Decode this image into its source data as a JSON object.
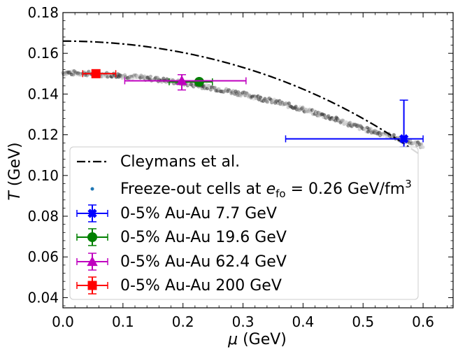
{
  "chart_data": {
    "type": "scatter",
    "xlabel_var": "μ",
    "xlabel_unit": " (GeV)",
    "ylabel_var": "T",
    "ylabel_unit": " (GeV)",
    "xlim": [
      0.0,
      0.65
    ],
    "ylim": [
      0.035,
      0.18
    ],
    "x_ticks": [
      "0.0",
      "0.1",
      "0.2",
      "0.3",
      "0.4",
      "0.5",
      "0.6"
    ],
    "x_tick_values": [
      0.0,
      0.1,
      0.2,
      0.3,
      0.4,
      0.5,
      0.6
    ],
    "y_ticks": [
      "0.04",
      "0.06",
      "0.08",
      "0.10",
      "0.12",
      "0.14",
      "0.16",
      "0.18"
    ],
    "y_tick_values": [
      0.04,
      0.06,
      0.08,
      0.1,
      0.12,
      0.14,
      0.16,
      0.18
    ],
    "cleymans_curve": {
      "name": "Cleymans et al.",
      "color": "#000000",
      "T0": 0.166,
      "a": 0.139,
      "b": 0.053,
      "mu_max": 0.595
    },
    "freezeout_band": {
      "name_prefix": "Freeze-out cells at ",
      "name_sym": "e",
      "name_sub": "fo",
      "name_eq": " = 0.26 GeV/fm",
      "name_sup": "3",
      "marker_color": "#1f77b4",
      "band_color": "#3a3a3a",
      "x": [
        0.0,
        0.05,
        0.1,
        0.15,
        0.2,
        0.25,
        0.3,
        0.35,
        0.4,
        0.45,
        0.5,
        0.55,
        0.6
      ],
      "y": [
        0.1505,
        0.15,
        0.149,
        0.1475,
        0.1455,
        0.143,
        0.14,
        0.1365,
        0.1325,
        0.128,
        0.123,
        0.119,
        0.1145
      ]
    },
    "series": [
      {
        "name": "0-5% Au-Au 7.7 GeV",
        "color": "#0000ff",
        "marker": "X",
        "x": 0.568,
        "y": 0.118,
        "xerr": [
          0.197,
          0.032
        ],
        "yerr": [
          0.004,
          0.019
        ]
      },
      {
        "name": "0-5% Au-Au 19.6 GeV",
        "color": "#008000",
        "marker": "o",
        "x": 0.227,
        "y": 0.146,
        "xerr": [
          0.05,
          0.022
        ],
        "yerr": [
          0.001,
          0.001
        ]
      },
      {
        "name": "0-5% Au-Au 62.4 GeV",
        "color": "#bf00bf",
        "marker": "^",
        "x": 0.198,
        "y": 0.1465,
        "xerr": [
          0.095,
          0.107
        ],
        "yerr": [
          0.0045,
          0.003
        ]
      },
      {
        "name": "0-5% Au-Au 200 GeV",
        "color": "#ff0000",
        "marker": "s",
        "x": 0.055,
        "y": 0.15,
        "xerr": [
          0.022,
          0.033
        ],
        "yerr": [
          0.0005,
          0.0005
        ]
      }
    ]
  }
}
